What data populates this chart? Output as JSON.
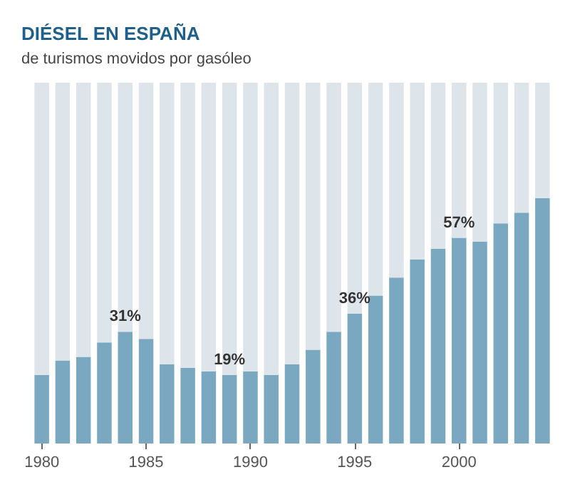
{
  "chart_data": {
    "type": "bar",
    "title": "DIÉSEL EN ESPAÑA",
    "subtitle": "de turismos movidos por gasóleo",
    "categories": [
      "1980",
      null,
      null,
      null,
      null,
      "1985",
      null,
      null,
      null,
      null,
      "1990",
      null,
      null,
      null,
      null,
      "1995",
      null,
      null,
      null,
      null,
      "2000",
      null,
      null,
      null,
      null
    ],
    "stacked": true,
    "ylim": [
      0,
      100
    ],
    "tick_labels": "x",
    "grid": false,
    "series": [
      {
        "color": "#7aa8c0",
        "values": [
          19,
          23,
          24,
          28,
          31,
          29,
          22,
          21,
          20,
          19,
          20,
          19,
          22,
          26,
          31,
          36,
          41,
          46,
          51,
          54,
          57,
          56,
          61,
          64,
          68
        ],
        "value_labels": [
          null,
          null,
          null,
          null,
          "31%",
          null,
          null,
          null,
          null,
          "19%",
          null,
          null,
          null,
          null,
          null,
          "36%",
          null,
          null,
          null,
          null,
          "57%",
          null,
          null,
          null,
          null
        ]
      },
      {
        "color": "#dde4ea",
        "values": [
          81,
          77,
          76,
          72,
          69,
          71,
          78,
          79,
          80,
          81,
          80,
          81,
          78,
          74,
          69,
          64,
          59,
          54,
          49,
          46,
          43,
          44,
          39,
          36,
          32
        ]
      }
    ]
  }
}
